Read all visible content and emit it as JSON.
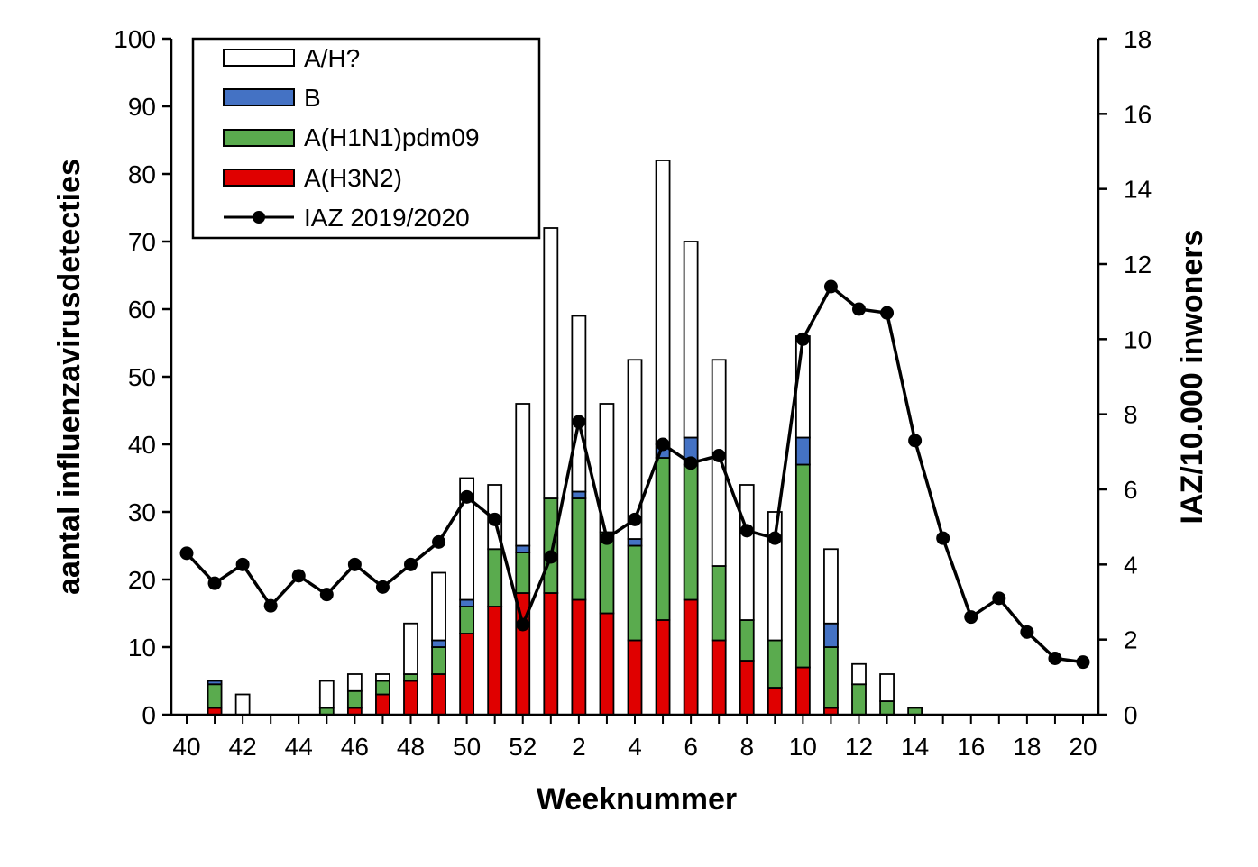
{
  "chart_data": {
    "type": "bar",
    "stacked": true,
    "combo_line": true,
    "xlabel": "Weeknummer",
    "ylabel_left": "aantal influenzavirusdetecties",
    "ylabel_right": "IAZ/10.000 inwoners",
    "ylim_left": [
      0,
      100
    ],
    "yticks_left": [
      0,
      10,
      20,
      30,
      40,
      50,
      60,
      70,
      80,
      90,
      100
    ],
    "ylim_right": [
      0,
      18
    ],
    "yticks_right": [
      0,
      2,
      4,
      6,
      8,
      10,
      12,
      14,
      16,
      18
    ],
    "grid": false,
    "legend_position": "top-left",
    "weeks": [
      "40",
      "41",
      "42",
      "43",
      "44",
      "45",
      "46",
      "47",
      "48",
      "49",
      "50",
      "51",
      "52",
      "1",
      "2",
      "3",
      "4",
      "5",
      "6",
      "7",
      "8",
      "9",
      "10",
      "11",
      "12",
      "13",
      "14",
      "15",
      "16",
      "17",
      "18",
      "19",
      "20"
    ],
    "x_tick_labels": [
      "40",
      "",
      "42",
      "",
      "44",
      "",
      "46",
      "",
      "48",
      "",
      "50",
      "",
      "52",
      "",
      "2",
      "",
      "4",
      "",
      "6",
      "",
      "8",
      "",
      "10",
      "",
      "12",
      "",
      "14",
      "",
      "16",
      "",
      "18",
      "",
      "20"
    ],
    "series": [
      {
        "name": "A(H3N2)",
        "kind": "bar",
        "color": "#e00000",
        "values": [
          0,
          1,
          0,
          0,
          0,
          0,
          1,
          3,
          5,
          6,
          12,
          16,
          18,
          18,
          17,
          15,
          11,
          14,
          17,
          11,
          8,
          4,
          7,
          1,
          0,
          0,
          0,
          0,
          0,
          0,
          0,
          0,
          0
        ]
      },
      {
        "name": "A(H1N1)pdm09",
        "kind": "bar",
        "color": "#5aab4e",
        "values": [
          0,
          3.5,
          0,
          0,
          0,
          1,
          2.5,
          2,
          1,
          4,
          4,
          8.5,
          6,
          14,
          15,
          12,
          14,
          24,
          20,
          11,
          6,
          7,
          30,
          9,
          4.5,
          2,
          1,
          0,
          0,
          0,
          0,
          0,
          0
        ]
      },
      {
        "name": "B",
        "kind": "bar",
        "color": "#4472c4",
        "values": [
          0,
          0.5,
          0,
          0,
          0,
          0,
          0,
          0,
          0,
          1,
          1,
          0,
          1,
          0,
          1,
          0,
          1,
          2,
          4,
          0,
          0,
          0,
          4,
          3.5,
          0,
          0,
          0,
          0,
          0,
          0,
          0,
          0,
          0
        ]
      },
      {
        "name": "A/H?",
        "kind": "bar",
        "color": "#ffffff",
        "values": [
          0,
          0,
          3,
          0,
          0,
          4,
          2.5,
          1,
          7.5,
          10,
          18,
          9.5,
          21,
          40,
          26,
          19,
          26.5,
          42,
          29,
          30.5,
          20,
          19,
          15,
          11,
          3,
          4,
          0,
          0,
          0,
          0,
          0,
          0,
          0
        ]
      },
      {
        "name": "IAZ 2019/2020",
        "kind": "line",
        "axis": "right",
        "color": "#000000",
        "values": [
          4.3,
          3.5,
          4.0,
          2.9,
          3.7,
          3.2,
          4.0,
          3.4,
          4.0,
          4.6,
          5.8,
          5.2,
          2.4,
          4.2,
          7.8,
          4.7,
          5.2,
          7.2,
          6.7,
          6.9,
          4.9,
          4.7,
          10.0,
          11.4,
          10.8,
          10.7,
          7.3,
          4.7,
          2.6,
          3.1,
          2.2,
          1.5,
          1.4
        ]
      }
    ],
    "legend": [
      "A/H?",
      "B",
      "A(H1N1)pdm09",
      "A(H3N2)",
      "IAZ 2019/2020"
    ]
  }
}
